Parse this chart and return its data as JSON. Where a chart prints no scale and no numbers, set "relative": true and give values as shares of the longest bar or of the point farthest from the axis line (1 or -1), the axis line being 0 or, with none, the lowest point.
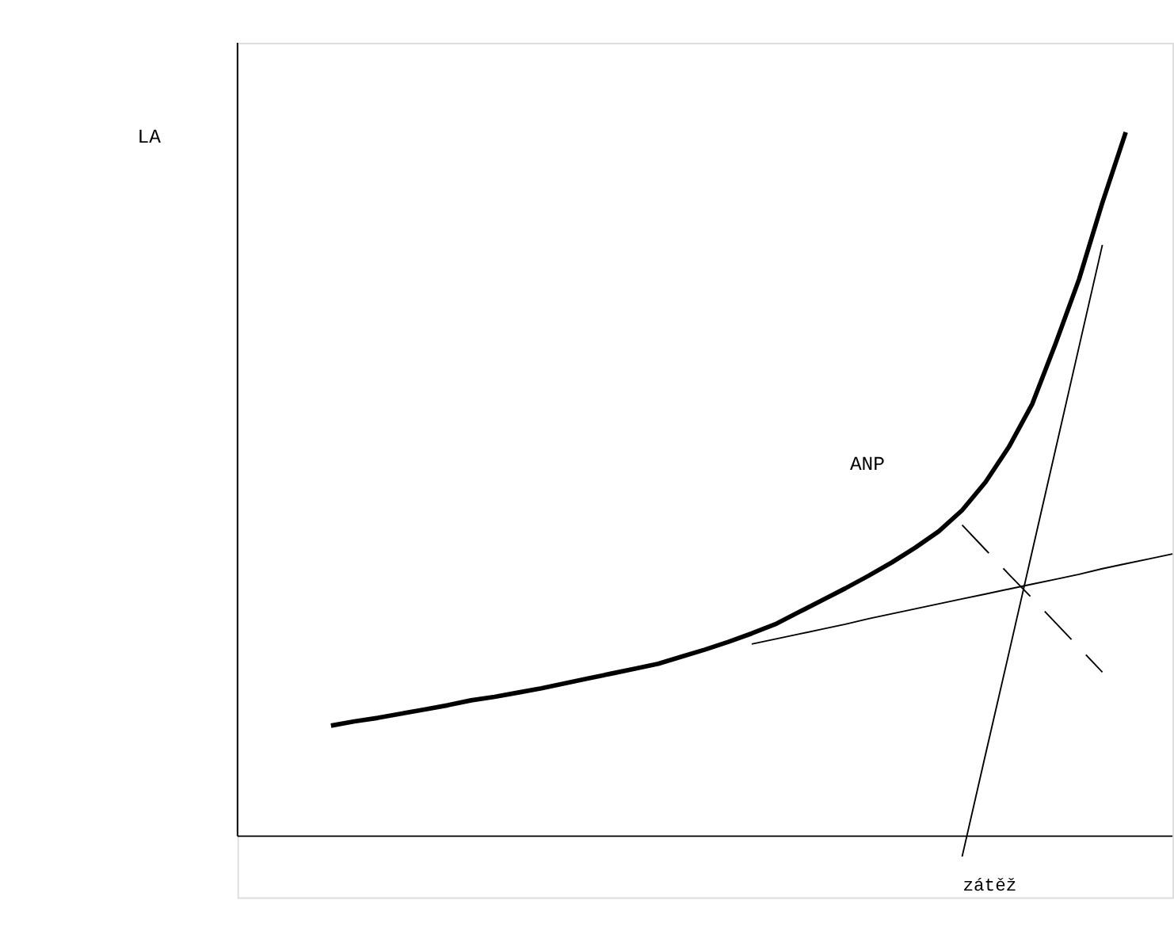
{
  "chart_data": {
    "type": "line",
    "relative": true,
    "xlabel": "zátěž",
    "tick_labels": false,
    "grid": false,
    "annotations": [
      "LA",
      "ANP"
    ],
    "categories": [
      null,
      null,
      null,
      null,
      null,
      null,
      null,
      null,
      null,
      null,
      null,
      null,
      null,
      null,
      null,
      null,
      null,
      null,
      null,
      null,
      null,
      null,
      null,
      null,
      null,
      null,
      null,
      null,
      null,
      null,
      null,
      null,
      null,
      null,
      null,
      null,
      null
    ],
    "series": [
      {
        "color": "#000000",
        "values": [
          0.157,
          0.163,
          0.168,
          0.174,
          0.18,
          0.186,
          0.193,
          0.198,
          0.204,
          0.21,
          0.217,
          0.224,
          0.231,
          0.238,
          0.245,
          0.255,
          0.265,
          0.276,
          0.288,
          0.301,
          0.318,
          0.335,
          0.352,
          0.37,
          0.389,
          0.41,
          0.433,
          0.463,
          0.503,
          0.553,
          0.614,
          0.7,
          0.791,
          0.9,
          1.0,
          null,
          null
        ],
        "line_style": "solid"
      },
      {
        "color": "#000000",
        "values": [
          null,
          null,
          null,
          null,
          null,
          null,
          null,
          null,
          null,
          null,
          null,
          null,
          null,
          null,
          null,
          null,
          null,
          null,
          0.273,
          0.28,
          0.287,
          0.294,
          0.301,
          0.309,
          0.316,
          0.323,
          0.33,
          0.337,
          0.344,
          0.351,
          0.358,
          0.365,
          0.372,
          0.38,
          0.387,
          0.394,
          0.401
        ],
        "line_style": "solid"
      },
      {
        "color": "#000000",
        "values": [
          null,
          null,
          null,
          null,
          null,
          null,
          null,
          null,
          null,
          null,
          null,
          null,
          null,
          null,
          null,
          null,
          null,
          null,
          null,
          null,
          null,
          null,
          null,
          null,
          null,
          null,
          null,
          -0.029,
          0.116,
          0.26,
          0.405,
          0.55,
          0.695,
          0.84,
          null,
          null,
          null
        ],
        "line_style": "solid"
      },
      {
        "color": "#000000",
        "values": [
          null,
          null,
          null,
          null,
          null,
          null,
          null,
          null,
          null,
          null,
          null,
          null,
          null,
          null,
          null,
          null,
          null,
          null,
          null,
          null,
          null,
          null,
          null,
          null,
          null,
          null,
          null,
          0.442,
          0.407,
          0.372,
          0.338,
          0.303,
          0.268,
          0.233,
          null,
          null,
          null
        ],
        "line_style": "dashed"
      }
    ]
  }
}
